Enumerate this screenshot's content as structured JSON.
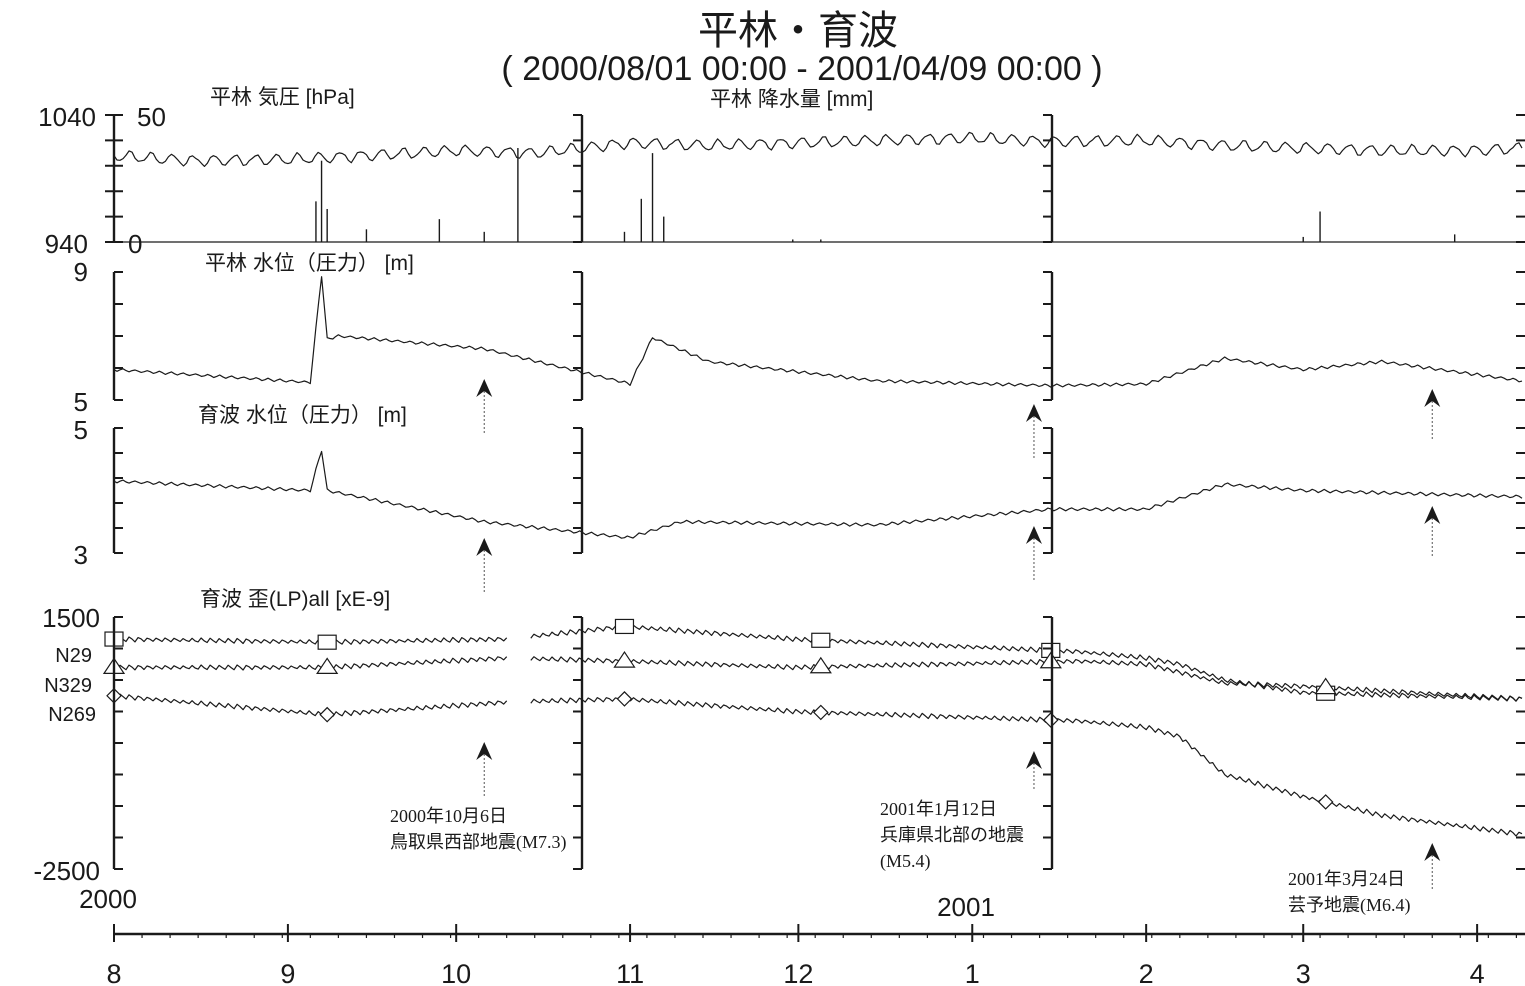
{
  "chart_data": {
    "type": "line",
    "title": "平林・育波",
    "subtitle": "( 2000/08/01 00:00 - 2001/04/09 00:00 )",
    "x_range": [
      "2000-08-01",
      "2001-04-09"
    ],
    "year_labels": [
      "2000",
      "2001"
    ],
    "month_ticks": [
      "8",
      "9",
      "10",
      "11",
      "12",
      "1",
      "2",
      "3",
      "4"
    ],
    "panels": [
      {
        "id": "pressure_rain",
        "label_left": "平林 気圧 [hPa]",
        "label_right": "平林 降水量 [mm]",
        "left_axis": {
          "top": "1040",
          "bottom": "940",
          "ylim": [
            940,
            1040
          ]
        },
        "right_axis": {
          "top": "50",
          "bottom": "0",
          "ylim": [
            0,
            50
          ]
        },
        "series": [
          {
            "type": "line",
            "x": [
              "2000-08-01",
              "2000-08-15",
              "2000-09-01",
              "2000-09-15",
              "2000-10-01",
              "2000-10-15",
              "2000-11-01",
              "2000-11-15",
              "2000-12-01",
              "2000-12-15",
              "2001-01-01",
              "2001-01-15",
              "2001-02-01",
              "2001-02-15",
              "2001-03-01",
              "2001-03-15",
              "2001-04-01",
              "2001-04-09"
            ],
            "values": [
              1008,
              1004,
              1005,
              1008,
              1012,
              1010,
              1018,
              1016,
              1018,
              1020,
              1022,
              1019,
              1020,
              1016,
              1014,
              1012,
              1012,
              1014
            ]
          },
          {
            "type": "bar",
            "x": [
              "2000-09-06",
              "2000-09-07",
              "2000-09-08",
              "2000-09-15",
              "2000-09-28",
              "2000-10-06",
              "2000-10-12",
              "2000-10-31",
              "2000-11-03",
              "2000-11-05",
              "2000-11-07",
              "2000-11-30",
              "2000-12-05",
              "2001-03-01",
              "2001-03-04",
              "2001-03-28"
            ],
            "values": [
              16,
              32,
              13,
              5,
              9,
              4,
              37,
              4,
              17,
              35,
              10,
              1,
              1,
              2,
              12,
              3
            ]
          }
        ]
      },
      {
        "id": "hirabayashi_water",
        "label": "平林 水位（圧力） [m]",
        "axis": {
          "top": "9",
          "bottom": "5",
          "ylim": [
            5,
            9
          ]
        },
        "series": [
          {
            "x": [
              "2000-08-01",
              "2000-09-05",
              "2000-09-07",
              "2000-09-08",
              "2000-09-10",
              "2000-10-06",
              "2000-10-31",
              "2000-11-01",
              "2000-11-05",
              "2000-11-15",
              "2000-12-15",
              "2001-01-15",
              "2001-02-01",
              "2001-02-15",
              "2001-03-01",
              "2001-03-15",
              "2001-04-09"
            ],
            "values": [
              5.95,
              5.55,
              8.9,
              6.9,
              7.0,
              6.6,
              5.55,
              5.5,
              6.95,
              6.2,
              5.6,
              5.45,
              5.5,
              6.3,
              5.95,
              6.2,
              5.6
            ]
          }
        ]
      },
      {
        "id": "ikuha_water",
        "label": "育波 水位（圧力） [m]",
        "axis": {
          "top": "5",
          "bottom": "3",
          "ylim": [
            3,
            5
          ]
        },
        "series": [
          {
            "x": [
              "2000-08-01",
              "2000-09-05",
              "2000-09-07",
              "2000-09-08",
              "2000-10-06",
              "2000-10-31",
              "2000-11-01",
              "2000-11-10",
              "2000-12-15",
              "2001-01-15",
              "2001-02-01",
              "2001-02-15",
              "2001-03-01",
              "2001-04-09"
            ],
            "values": [
              4.15,
              4.0,
              4.65,
              4.0,
              3.5,
              3.25,
              3.25,
              3.5,
              3.45,
              3.7,
              3.7,
              4.1,
              4.0,
              3.9
            ]
          }
        ]
      },
      {
        "id": "strain",
        "label": "育波 歪(LP)all [xE-9]",
        "axis": {
          "top": "1500",
          "bottom": "-2500",
          "ylim": [
            -2500,
            1500
          ]
        },
        "series": [
          {
            "name": "N29",
            "x": [
              "2000-08-01",
              "2000-09-08",
              "2000-10-10",
              "2000-10-31",
              "2000-11-30",
              "2001-01-20",
              "2001-02-01",
              "2001-02-07",
              "2001-02-15",
              "2001-03-01",
              "2001-04-09"
            ],
            "values": [
              1150,
              1100,
              1150,
              1350,
              1150,
              950,
              850,
              750,
              500,
              300,
              200
            ]
          },
          {
            "name": "N329",
            "x": [
              "2000-08-01",
              "2000-09-08",
              "2000-10-10",
              "2000-10-31",
              "2000-11-30",
              "2001-01-20",
              "2001-02-01",
              "2001-02-15",
              "2001-03-01",
              "2001-04-09"
            ],
            "values": [
              700,
              700,
              850,
              800,
              700,
              800,
              750,
              450,
              400,
              200
            ]
          },
          {
            "name": "N269",
            "x": [
              "2000-08-01",
              "2000-09-08",
              "2000-10-10",
              "2000-10-31",
              "2000-11-30",
              "2001-01-20",
              "2001-02-01",
              "2001-02-07",
              "2001-02-15",
              "2001-03-01",
              "2001-03-15",
              "2001-04-09"
            ],
            "values": [
              250,
              -50,
              150,
              200,
              0,
              -150,
              -250,
              -400,
              -1000,
              -1350,
              -1650,
              -1950
            ]
          }
        ]
      }
    ],
    "annotations": [
      {
        "date": "2000-10-06",
        "lines": [
          "2000年10月6日",
          "鳥取県西部地震(M7.3)"
        ]
      },
      {
        "date": "2001-01-12",
        "lines": [
          "2001年1月12日",
          "兵庫県北部の地震",
          "(M5.4)"
        ]
      },
      {
        "date": "2001-03-24",
        "lines": [
          "2001年3月24日",
          "芸予地震(M6.4)"
        ]
      }
    ]
  }
}
